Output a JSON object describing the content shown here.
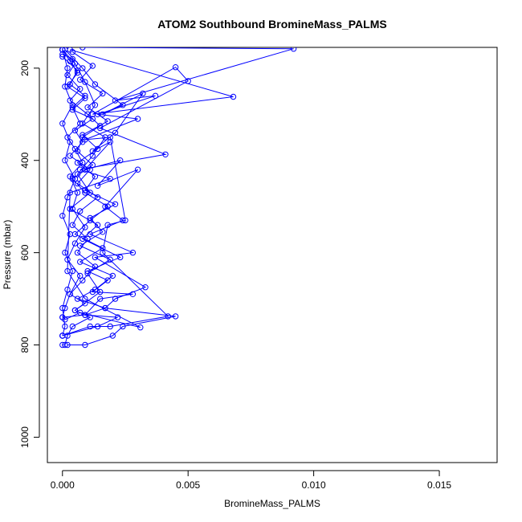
{
  "chart_data": {
    "type": "line",
    "title": "ATOM2 Southbound BromineMass_PALMS",
    "xlabel": "BromineMass_PALMS",
    "ylabel": "Pressure (mbar)",
    "xlim": [
      -0.0006,
      0.0173
    ],
    "ylim": [
      1055,
      155
    ],
    "y_reversed": true,
    "grid": false,
    "color": "#0000ff",
    "x_ticks": [
      {
        "value": 0.0,
        "label": "0.000"
      },
      {
        "value": 0.005,
        "label": "0.005"
      },
      {
        "value": 0.01,
        "label": "0.010"
      },
      {
        "value": 0.015,
        "label": "0.015"
      }
    ],
    "y_ticks": [
      {
        "value": 200,
        "label": "200"
      },
      {
        "value": 400,
        "label": "400"
      },
      {
        "value": 600,
        "label": "600"
      },
      {
        "value": 800,
        "label": "800"
      },
      {
        "value": 1000,
        "label": "1000"
      }
    ],
    "series": [
      {
        "x": [
          0.0,
          0.0003,
          0.0006,
          0.0002,
          0.0009,
          0.0004,
          0.0012,
          0.0005,
          0.0008,
          0.0003,
          0.0011,
          0.0006,
          0.0014,
          0.0007,
          0.0004,
          0.001,
          0.0006,
          0.0013,
          0.0008,
          0.0003,
          0.0009,
          0.0005,
          0.0011,
          0.0004,
          0.0002,
          0.0001,
          0.0
        ],
        "y": [
          160,
          185,
          210,
          240,
          265,
          290,
          310,
          335,
          360,
          390,
          420,
          450,
          480,
          510,
          540,
          570,
          600,
          630,
          660,
          690,
          710,
          725,
          740,
          760,
          780,
          800,
          800
        ]
      },
      {
        "x": [
          0.0,
          0.0005,
          0.0002,
          0.0007,
          0.0003,
          0.001,
          0.0015,
          0.0008,
          0.0006,
          0.0012,
          0.0004,
          0.0009,
          0.0018,
          0.0011,
          0.0005,
          0.0016,
          0.0007,
          0.002,
          0.0013,
          0.0006,
          0.0017,
          0.0009,
          0.0022,
          0.0014,
          0.0
        ],
        "y": [
          160,
          190,
          215,
          245,
          270,
          300,
          325,
          350,
          380,
          410,
          440,
          470,
          500,
          530,
          560,
          590,
          620,
          650,
          680,
          700,
          720,
          735,
          740,
          760,
          780
        ]
      },
      {
        "x": [
          0.0001,
          0.0008,
          0.0013,
          0.0024,
          0.0016,
          0.0032,
          0.0021,
          0.0012,
          0.0019,
          0.0009,
          0.0023,
          0.0014,
          0.003,
          0.0017,
          0.0024,
          0.0011,
          0.0028,
          0.0013,
          0.0033,
          0.0021,
          0.0017,
          0.0045,
          0.0024,
          0.002,
          0.0009,
          0.0002
        ],
        "y": [
          160,
          200,
          235,
          280,
          300,
          255,
          340,
          380,
          360,
          420,
          400,
          455,
          420,
          500,
          530,
          560,
          600,
          610,
          675,
          700,
          720,
          738,
          760,
          780,
          800,
          800
        ]
      },
      {
        "x": [
          0.0003,
          0.0068,
          0.0012,
          0.0045,
          0.005,
          0.0015,
          0.0041,
          0.0007,
          0.0019,
          0.0003,
          0.0002,
          0.0009,
          0.0031,
          0.0007,
          0.0001
        ],
        "y": [
          160,
          262,
          300,
          198,
          228,
          330,
          387,
          420,
          440,
          470,
          640,
          700,
          762,
          730,
          745
        ]
      },
      {
        "x": [
          0.0008,
          0.0092,
          0.0021,
          0.0037,
          0.0014,
          0.003,
          0.0009,
          0.0019,
          0.0025,
          0.0018,
          0.0016,
          0.0042,
          0.0019,
          0.0011,
          0.0
        ],
        "y": [
          155,
          158,
          270,
          260,
          300,
          310,
          355,
          350,
          530,
          540,
          600,
          738,
          760,
          760,
          780
        ]
      },
      {
        "x": [
          0.0,
          0.0006,
          0.0003,
          0.0009,
          0.0004,
          0.0007,
          0.0002,
          0.0005,
          0.0008,
          0.0003,
          0.0006,
          0.0004,
          0.0009,
          0.0005,
          0.0002,
          0.0007,
          0.0003,
          0.0001,
          0.0
        ],
        "y": [
          175,
          205,
          235,
          260,
          285,
          320,
          350,
          375,
          405,
          435,
          470,
          505,
          545,
          580,
          615,
          650,
          690,
          720,
          740
        ]
      },
      {
        "x": [
          0.0,
          0.0002,
          0.0001,
          0.0004,
          0.0,
          0.0003,
          0.0001,
          0.0005,
          0.0002,
          0.0,
          0.0003,
          0.0001,
          0.0004,
          0.0002,
          0.0,
          0.0001,
          0.0
        ],
        "y": [
          160,
          200,
          240,
          280,
          320,
          360,
          400,
          440,
          480,
          520,
          560,
          600,
          640,
          680,
          720,
          760,
          780
        ]
      },
      {
        "x": [
          0.0004,
          0.0012,
          0.0007,
          0.0016,
          0.001,
          0.0018,
          0.0008,
          0.0014,
          0.0006,
          0.0013,
          0.0009,
          0.0021,
          0.0011,
          0.0016,
          0.0007,
          0.0019,
          0.001,
          0.0015,
          0.0005
        ],
        "y": [
          165,
          195,
          225,
          255,
          285,
          315,
          345,
          375,
          405,
          435,
          465,
          495,
          525,
          555,
          585,
          615,
          645,
          685,
          725
        ]
      },
      {
        "x": [
          0.0,
          0.0004,
          0.0009,
          0.0013,
          0.0008,
          0.0017,
          0.0012,
          0.0006,
          0.0011,
          0.0003,
          0.0014,
          0.0008,
          0.0023,
          0.001,
          0.0018,
          0.0012,
          0.0028,
          0.0015,
          0.0009,
          0.0
        ],
        "y": [
          170,
          180,
          230,
          280,
          320,
          350,
          390,
          430,
          470,
          505,
          540,
          570,
          610,
          640,
          660,
          685,
          690,
          700,
          735,
          740
        ]
      }
    ]
  }
}
